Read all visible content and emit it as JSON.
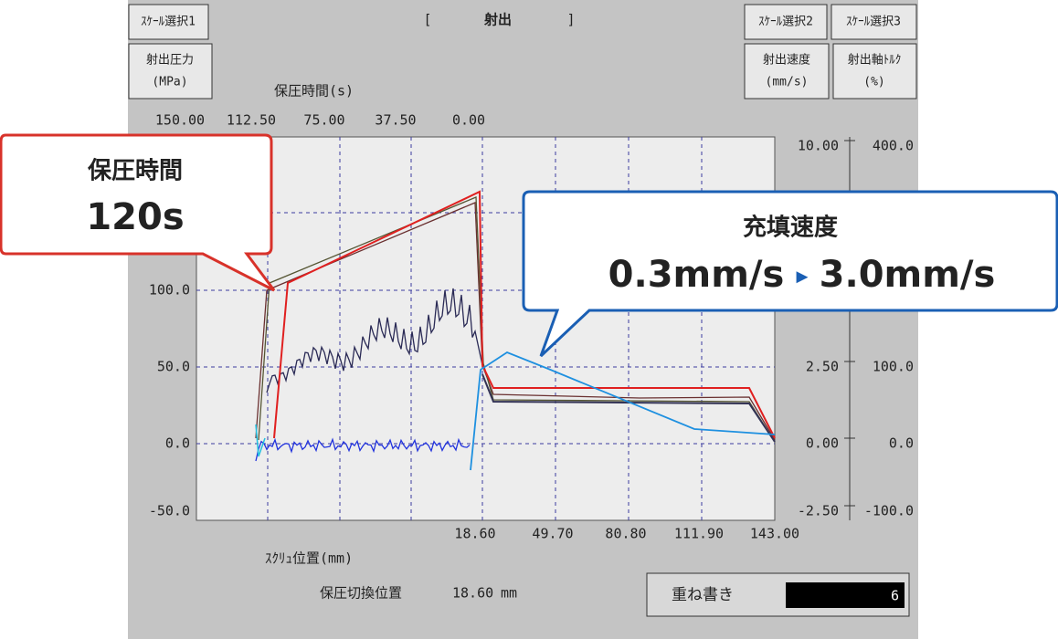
{
  "header": {
    "scale_1": "ｽｹｰﾙ選択1",
    "scale_2": "ｽｹｰﾙ選択2",
    "scale_3": "ｽｹｰﾙ選択3",
    "title_left": "[",
    "title": "射出",
    "title_right": "]"
  },
  "axes": {
    "left": {
      "name": "射出圧力",
      "unit": "(MPa)",
      "ticks": [
        "100.0",
        "50.0",
        "0.0",
        "-50.0"
      ]
    },
    "right_1": {
      "name": "射出速度",
      "unit": "(mm/s)",
      "ticks": [
        "10.00",
        "2.50",
        "0.00",
        "-2.50"
      ]
    },
    "right_2": {
      "name": "射出軸ﾄﾙｸ",
      "unit": "(%)",
      "ticks": [
        "400.0",
        "100.0",
        "0.0",
        "-100.0"
      ]
    },
    "top": {
      "label": "保圧時間(s)",
      "ticks": [
        "150.00",
        "112.50",
        "75.00",
        "37.50",
        "0.00"
      ]
    },
    "bottom": {
      "label": "ｽｸﾘｭ位置(mm)",
      "ticks": [
        "18.60",
        "49.70",
        "80.80",
        "111.90",
        "143.00"
      ]
    }
  },
  "footer": {
    "switch_label": "保圧切換位置",
    "switch_value": "18.60",
    "switch_unit": "mm",
    "overlay_label": "重ね書き",
    "overlay_value": "6"
  },
  "callouts": {
    "hold": {
      "title": "保圧時間",
      "value": "120s"
    },
    "fill": {
      "title": "充填速度",
      "from": "0.3mm/s",
      "arrow": "▸",
      "to": "3.0mm/s"
    }
  }
}
